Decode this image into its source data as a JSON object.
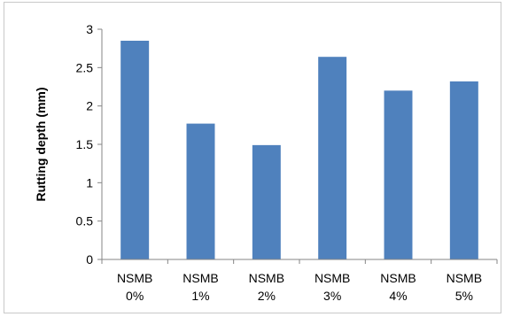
{
  "chart_data": {
    "type": "bar",
    "title": "",
    "xlabel": "",
    "ylabel": "Rutting depth (mm)",
    "categories": [
      [
        "NSMB",
        "0%"
      ],
      [
        "NSMB",
        "1%"
      ],
      [
        "NSMB",
        "2%"
      ],
      [
        "NSMB",
        "3%"
      ],
      [
        "NSMB",
        "4%"
      ],
      [
        "NSMB",
        "5%"
      ]
    ],
    "values": [
      2.85,
      1.77,
      1.49,
      2.64,
      2.2,
      2.32
    ],
    "ylim": [
      0,
      3
    ],
    "yticks": [
      "0",
      "0.5",
      "1",
      "1.5",
      "2",
      "2.5",
      "3"
    ],
    "grid": false,
    "legend": "none",
    "colors": {
      "bar": "#4f81bd",
      "axis": "#868686"
    }
  }
}
